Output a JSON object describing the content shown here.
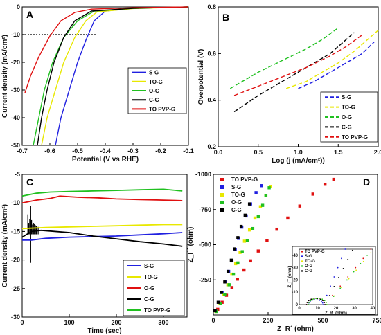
{
  "chart_data": [
    {
      "id": "A",
      "panel_label": "A",
      "type": "line",
      "xlabel": "Potential (V vs RHE)",
      "ylabel": "Current density (mA/cm²)",
      "xlim": [
        -0.7,
        -0.1
      ],
      "ylim": [
        -50,
        0
      ],
      "xticks": [
        "-0.7",
        "-0.6",
        "-0.5",
        "-0.4",
        "-0.3",
        "-0.2",
        "-0.1"
      ],
      "yticks": [
        "0",
        "-10",
        "-20",
        "-30",
        "-40",
        "-50"
      ],
      "reference_line": {
        "y": -10,
        "x_range": [
          -0.7,
          -0.43
        ],
        "style": "dotted"
      },
      "legend_position": "bottom-right",
      "series": [
        {
          "name": "S-G",
          "color": "#2020e0",
          "points": [
            [
              -0.58,
              -50
            ],
            [
              -0.56,
              -40
            ],
            [
              -0.53,
              -30
            ],
            [
              -0.5,
              -20
            ],
            [
              -0.47,
              -12
            ],
            [
              -0.44,
              -5
            ],
            [
              -0.4,
              -1.5
            ],
            [
              -0.3,
              -0.5
            ],
            [
              -0.1,
              0
            ]
          ]
        },
        {
          "name": "TO-G",
          "color": "#e8e800",
          "points": [
            [
              -0.63,
              -50
            ],
            [
              -0.61,
              -40
            ],
            [
              -0.58,
              -30
            ],
            [
              -0.55,
              -20
            ],
            [
              -0.51,
              -11
            ],
            [
              -0.47,
              -5
            ],
            [
              -0.43,
              -1.8
            ],
            [
              -0.3,
              -0.6
            ],
            [
              -0.1,
              0
            ]
          ]
        },
        {
          "name": "O-G",
          "color": "#20c020",
          "points": [
            [
              -0.66,
              -50
            ],
            [
              -0.64,
              -40
            ],
            [
              -0.62,
              -30
            ],
            [
              -0.59,
              -20
            ],
            [
              -0.55,
              -11
            ],
            [
              -0.5,
              -5
            ],
            [
              -0.44,
              -1.5
            ],
            [
              -0.3,
              -0.5
            ],
            [
              -0.1,
              0
            ]
          ]
        },
        {
          "name": "C-G",
          "color": "#000000",
          "points": [
            [
              -0.645,
              -50
            ],
            [
              -0.63,
              -40
            ],
            [
              -0.61,
              -30
            ],
            [
              -0.585,
              -20
            ],
            [
              -0.55,
              -11
            ],
            [
              -0.51,
              -5
            ],
            [
              -0.45,
              -1.5
            ],
            [
              -0.3,
              -0.5
            ],
            [
              -0.1,
              0
            ]
          ]
        },
        {
          "name": "TO PVP-G",
          "color": "#e01010",
          "points": [
            [
              -0.69,
              -31
            ],
            [
              -0.67,
              -25
            ],
            [
              -0.64,
              -18
            ],
            [
              -0.6,
              -10.5
            ],
            [
              -0.56,
              -5
            ],
            [
              -0.51,
              -2
            ],
            [
              -0.45,
              -0.8
            ],
            [
              -0.3,
              -0.3
            ],
            [
              -0.1,
              0
            ]
          ]
        }
      ]
    },
    {
      "id": "B",
      "panel_label": "B",
      "type": "line",
      "xlabel": "Log (j (mA/cm²))",
      "ylabel": "Overpotential (V)",
      "xlim": [
        0.0,
        2.0
      ],
      "ylim": [
        0.2,
        0.8
      ],
      "xticks": [
        "0.0",
        "0.5",
        "1.0",
        "1.5",
        "2.0"
      ],
      "yticks": [
        "0.2",
        "0.4",
        "0.6",
        "0.8"
      ],
      "legend_position": "bottom-right",
      "series": [
        {
          "name": "S-G",
          "color": "#2020e0",
          "points": [
            [
              1.0,
              0.45
            ],
            [
              1.2,
              0.48
            ],
            [
              1.4,
              0.52
            ],
            [
              1.6,
              0.56
            ],
            [
              1.8,
              0.6
            ],
            [
              1.95,
              0.65
            ]
          ]
        },
        {
          "name": "TO-G",
          "color": "#e8e800",
          "points": [
            [
              0.85,
              0.45
            ],
            [
              1.1,
              0.48
            ],
            [
              1.3,
              0.52
            ],
            [
              1.5,
              0.56
            ],
            [
              1.7,
              0.61
            ],
            [
              1.9,
              0.67
            ],
            [
              2.0,
              0.7
            ]
          ]
        },
        {
          "name": "O-G",
          "color": "#20c020",
          "points": [
            [
              0.15,
              0.45
            ],
            [
              0.5,
              0.52
            ],
            [
              0.8,
              0.57
            ],
            [
              1.1,
              0.62
            ],
            [
              1.3,
              0.66
            ],
            [
              1.5,
              0.71
            ]
          ]
        },
        {
          "name": "C-G",
          "color": "#000000",
          "points": [
            [
              0.2,
              0.35
            ],
            [
              0.5,
              0.42
            ],
            [
              0.8,
              0.48
            ],
            [
              1.1,
              0.54
            ],
            [
              1.4,
              0.6
            ],
            [
              1.6,
              0.66
            ],
            [
              1.7,
              0.69
            ]
          ]
        },
        {
          "name": "TO PVP-G",
          "color": "#e01010",
          "points": [
            [
              0.2,
              0.42
            ],
            [
              0.5,
              0.46
            ],
            [
              0.8,
              0.5
            ],
            [
              1.1,
              0.54
            ],
            [
              1.4,
              0.59
            ],
            [
              1.6,
              0.63
            ],
            [
              1.8,
              0.68
            ]
          ]
        }
      ]
    },
    {
      "id": "C",
      "panel_label": "C",
      "type": "line",
      "xlabel": "Time (sec)",
      "ylabel": "Current density (mA/cm²)",
      "xlim": [
        0,
        350
      ],
      "ylim": [
        -30,
        -5
      ],
      "xticks": [
        "0",
        "100",
        "200",
        "300"
      ],
      "yticks": [
        "-5",
        "-10",
        "-15",
        "-20",
        "-25",
        "-30"
      ],
      "legend_position": "bottom-right",
      "series": [
        {
          "name": "S-G",
          "color": "#2020e0",
          "points": [
            [
              0,
              -16.5
            ],
            [
              20,
              -16.5
            ],
            [
              50,
              -16.2
            ],
            [
              100,
              -16
            ],
            [
              150,
              -15.9
            ],
            [
              200,
              -15.8
            ],
            [
              250,
              -15.6
            ],
            [
              300,
              -15.4
            ],
            [
              340,
              -15.2
            ]
          ]
        },
        {
          "name": "TO-G",
          "color": "#e8e800",
          "points": [
            [
              0,
              -14.5
            ],
            [
              50,
              -14.3
            ],
            [
              100,
              -14.2
            ],
            [
              150,
              -14.1
            ],
            [
              200,
              -14.0
            ],
            [
              250,
              -13.9
            ],
            [
              300,
              -13.8
            ],
            [
              340,
              -13.8
            ]
          ]
        },
        {
          "name": "O-G",
          "color": "#e01010",
          "points": [
            [
              0,
              -10
            ],
            [
              30,
              -9.5
            ],
            [
              60,
              -9.2
            ],
            [
              80,
              -8.8
            ],
            [
              120,
              -9.0
            ],
            [
              160,
              -9.1
            ],
            [
              200,
              -9.3
            ],
            [
              250,
              -9.4
            ],
            [
              300,
              -9.5
            ],
            [
              340,
              -9.6
            ]
          ]
        },
        {
          "name": "C-G",
          "color": "#000000",
          "points": [
            [
              0,
              -16
            ],
            [
              20,
              -15
            ],
            [
              40,
              -14.8
            ],
            [
              100,
              -15.2
            ],
            [
              150,
              -15.8
            ],
            [
              200,
              -16.3
            ],
            [
              250,
              -16.8
            ],
            [
              300,
              -17.2
            ],
            [
              340,
              -17.6
            ]
          ]
        },
        {
          "name": "TO PVP-G",
          "color": "#20c020",
          "points": [
            [
              0,
              -8.8
            ],
            [
              30,
              -8.3
            ],
            [
              60,
              -8.1
            ],
            [
              100,
              -8.0
            ],
            [
              150,
              -7.9
            ],
            [
              200,
              -7.8
            ],
            [
              250,
              -7.7
            ],
            [
              300,
              -7.6
            ],
            [
              340,
              -7.9
            ]
          ]
        }
      ]
    },
    {
      "id": "D",
      "panel_label": "D",
      "type": "scatter",
      "xlabel": "Z_R´ (ohm)",
      "ylabel": "Z_I´´ (ohm)",
      "xlim": [
        0,
        750
      ],
      "ylim": [
        0,
        -1000
      ],
      "xticks": [
        "0",
        "250",
        "500",
        "750"
      ],
      "yticks": [
        "-1000",
        "-750",
        "-500",
        "-250"
      ],
      "legend_position": "top-left",
      "series": [
        {
          "name": "TO PVP-G",
          "color": "#e01010",
          "points": [
            [
              20,
              -40
            ],
            [
              40,
              -90
            ],
            [
              60,
              -140
            ],
            [
              85,
              -195
            ],
            [
              110,
              -255
            ],
            [
              140,
              -320
            ],
            [
              170,
              -385
            ],
            [
              205,
              -455
            ],
            [
              245,
              -530
            ],
            [
              290,
              -610
            ],
            [
              340,
              -690
            ],
            [
              395,
              -775
            ],
            [
              455,
              -860
            ],
            [
              510,
              -930
            ],
            [
              550,
              -965
            ]
          ]
        },
        {
          "name": "S-G",
          "color": "#2020e0",
          "points": [
            [
              10,
              -30
            ],
            [
              25,
              -90
            ],
            [
              40,
              -160
            ],
            [
              55,
              -235
            ],
            [
              70,
              -310
            ],
            [
              85,
              -385
            ],
            [
              100,
              -465
            ],
            [
              115,
              -545
            ],
            [
              130,
              -625
            ],
            [
              150,
              -705
            ],
            [
              170,
              -790
            ],
            [
              195,
              -870
            ],
            [
              220,
              -920
            ]
          ]
        },
        {
          "name": "TO-G",
          "color": "#e8e800",
          "points": [
            [
              12,
              -25
            ],
            [
              30,
              -80
            ],
            [
              48,
              -145
            ],
            [
              66,
              -215
            ],
            [
              84,
              -290
            ],
            [
              102,
              -365
            ],
            [
              122,
              -445
            ],
            [
              142,
              -525
            ],
            [
              165,
              -605
            ],
            [
              190,
              -690
            ],
            [
              215,
              -770
            ],
            [
              240,
              -850
            ],
            [
              260,
              -915
            ]
          ]
        },
        {
          "name": "O-G",
          "color": "#20c020",
          "points": [
            [
              15,
              -25
            ],
            [
              33,
              -80
            ],
            [
              52,
              -145
            ],
            [
              72,
              -215
            ],
            [
              92,
              -290
            ],
            [
              112,
              -370
            ],
            [
              132,
              -450
            ],
            [
              155,
              -530
            ],
            [
              180,
              -615
            ],
            [
              205,
              -700
            ],
            [
              225,
              -780
            ],
            [
              240,
              -850
            ],
            [
              255,
              -905
            ]
          ]
        },
        {
          "name": "C-G",
          "color": "#000000",
          "points": [
            [
              8,
              -30
            ],
            [
              22,
              -90
            ],
            [
              37,
              -160
            ],
            [
              52,
              -235
            ],
            [
              67,
              -310
            ],
            [
              82,
              -390
            ],
            [
              97,
              -470
            ],
            [
              112,
              -550
            ],
            [
              127,
              -630
            ],
            [
              145,
              -710
            ],
            [
              165,
              -790
            ]
          ]
        }
      ],
      "inset": {
        "xlabel": "Z_R´ (ohm)",
        "ylabel": "Z_I´´ (ohm)",
        "xlim": [
          0,
          40
        ],
        "ylim": [
          0,
          -45
        ],
        "xticks": [
          "0",
          "10",
          "20",
          "30",
          "40"
        ],
        "yticks": [
          "-40",
          "-30",
          "-20",
          "-10",
          "0"
        ],
        "series_names": [
          "TO PVP-G",
          "S-G",
          "TO-G",
          "O-G",
          "C-G"
        ]
      }
    }
  ]
}
